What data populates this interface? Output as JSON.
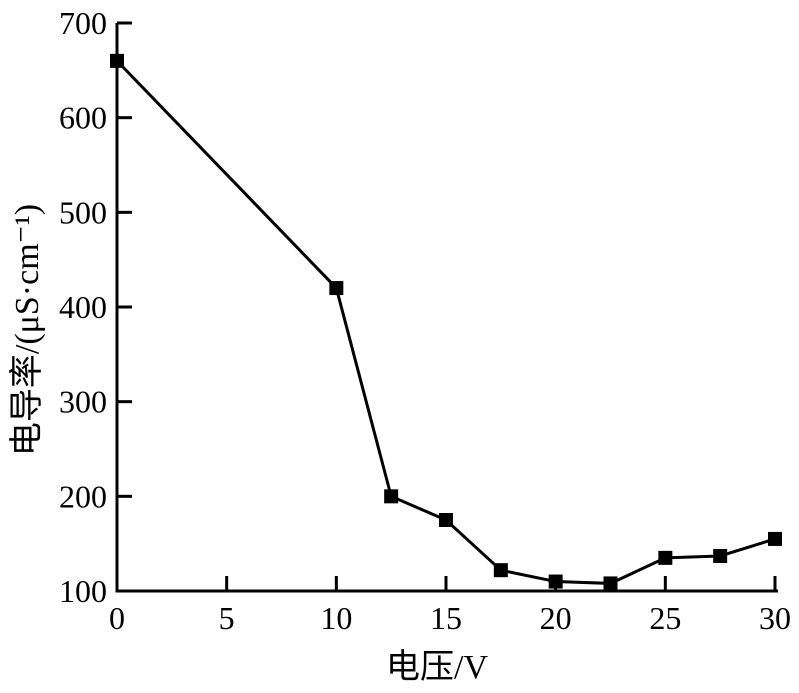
{
  "chart_data": {
    "type": "line",
    "title": "",
    "xlabel": "电压/V",
    "ylabel": "电导率/(μS·cm⁻¹)",
    "x": [
      0,
      10,
      12.5,
      15,
      17.5,
      20,
      22.5,
      25,
      27.5,
      30
    ],
    "y": [
      660,
      420,
      200,
      175,
      122,
      110,
      108,
      135,
      137,
      155
    ],
    "xlim": [
      0,
      30
    ],
    "ylim": [
      100,
      700
    ],
    "x_ticks": [
      "0",
      "5",
      "10",
      "15",
      "20",
      "25",
      "30"
    ],
    "y_ticks": [
      "100",
      "200",
      "300",
      "400",
      "500",
      "600",
      "700"
    ],
    "marker": "filled-square",
    "line_color": "#000000",
    "marker_color": "#000000",
    "axis_color": "#000000",
    "background_color": "#ffffff",
    "grid": false,
    "legend_position": "none"
  }
}
